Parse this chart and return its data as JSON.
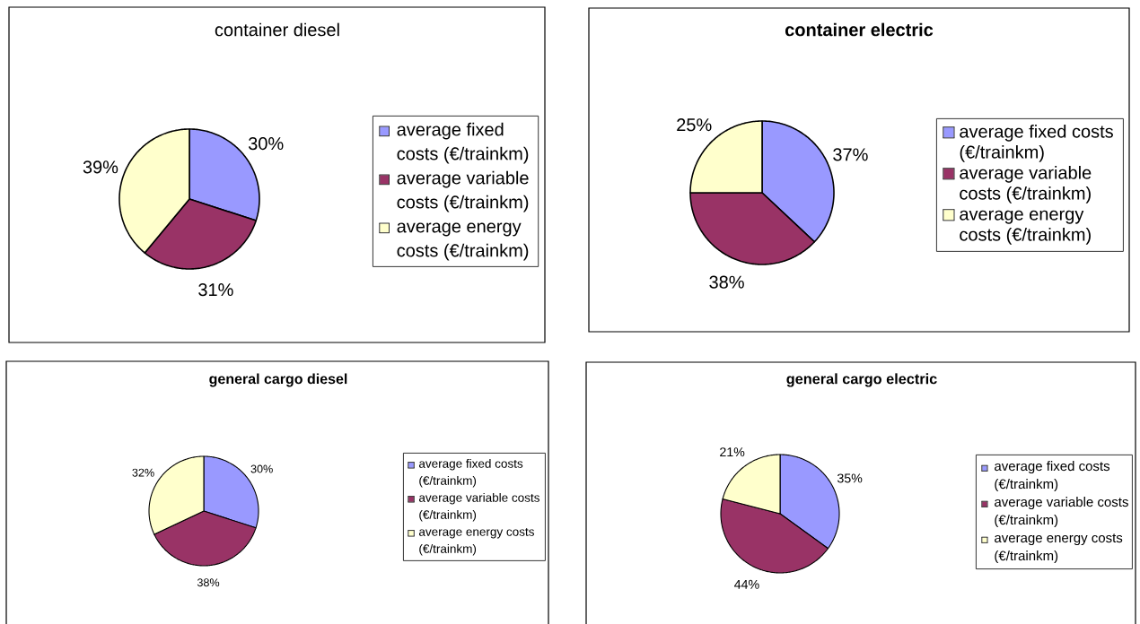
{
  "chart_data": [
    {
      "type": "pie",
      "title": "container diesel",
      "categories": [
        "average fixed costs (€/trainkm)",
        "average variable costs (€/trainkm)",
        "average energy costs (€/trainkm)"
      ],
      "values": [
        30,
        31,
        39
      ],
      "colors": [
        "#9999ff",
        "#993366",
        "#ffffcc"
      ],
      "value_labels": [
        "30%",
        "31%",
        "39%"
      ],
      "legend": "right"
    },
    {
      "type": "pie",
      "title": "container electric",
      "categories": [
        "average fixed costs (€/trainkm)",
        "average variable costs (€/trainkm)",
        "average energy costs (€/trainkm)"
      ],
      "values": [
        37,
        38,
        25
      ],
      "colors": [
        "#9999ff",
        "#993366",
        "#ffffcc"
      ],
      "value_labels": [
        "37%",
        "38%",
        "25%"
      ],
      "legend": "right"
    },
    {
      "type": "pie",
      "title": "general cargo diesel",
      "categories": [
        "average fixed costs (€/trainkm)",
        "average variable costs (€/trainkm)",
        "average energy costs (€/trainkm)"
      ],
      "values": [
        30,
        38,
        32
      ],
      "colors": [
        "#9999ff",
        "#993366",
        "#ffffcc"
      ],
      "value_labels": [
        "30%",
        "38%",
        "32%"
      ],
      "legend": "right"
    },
    {
      "type": "pie",
      "title": "general cargo electric",
      "categories": [
        "average fixed costs (€/trainkm)",
        "average variable costs (€/trainkm)",
        "average energy costs (€/trainkm)"
      ],
      "values": [
        35,
        44,
        21
      ],
      "colors": [
        "#9999ff",
        "#993366",
        "#ffffcc"
      ],
      "value_labels": [
        "35%",
        "44%",
        "21%"
      ],
      "legend": "right"
    }
  ]
}
